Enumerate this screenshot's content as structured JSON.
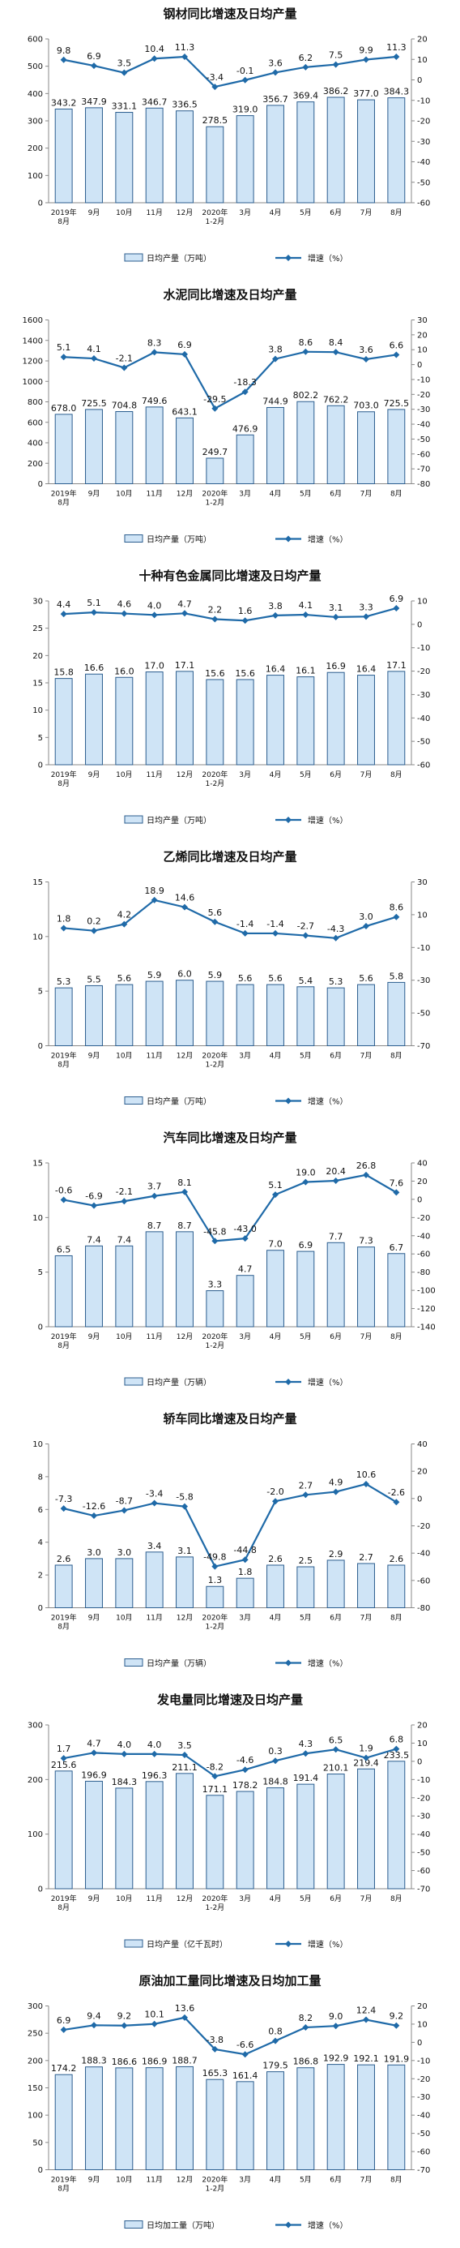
{
  "x_categories": [
    "2019年\n8月",
    "9月",
    "10月",
    "11月",
    "12月",
    "2020年\n1-2月",
    "3月",
    "4月",
    "5月",
    "6月",
    "7月",
    "8月"
  ],
  "colors": {
    "bar_fill": "#cfe4f6",
    "bar_stroke": "#2b5d8e",
    "line": "#1f6aa8",
    "axis": "#888888",
    "text": "#111111"
  },
  "chart_data": [
    {
      "type": "bar+line",
      "title": "钢材同比增速及日均产量",
      "legend": {
        "bar": "日均产量（万吨）",
        "line": "增速（%）",
        "placement": "bottom"
      },
      "bar_values": [
        343.2,
        347.9,
        331.1,
        346.7,
        336.5,
        278.5,
        319.0,
        356.7,
        369.4,
        386.2,
        377.0,
        384.3
      ],
      "line_values": [
        9.8,
        6.9,
        3.5,
        10.4,
        11.3,
        -3.4,
        -0.1,
        3.6,
        6.2,
        7.5,
        9.9,
        11.3
      ],
      "left_ticks": [
        0,
        100,
        200,
        300,
        400,
        500,
        600
      ],
      "right_ticks": [
        -60,
        -50,
        -40,
        -30,
        -20,
        -10,
        0,
        10,
        20
      ]
    },
    {
      "type": "bar+line",
      "title": "水泥同比增速及日均产量",
      "legend": {
        "bar": "日均产量（万吨）",
        "line": "增速（%）",
        "placement": "bottom"
      },
      "bar_values": [
        678.0,
        725.5,
        704.8,
        749.6,
        643.1,
        249.7,
        476.9,
        744.9,
        802.2,
        762.2,
        703.0,
        725.5
      ],
      "line_values": [
        5.1,
        4.1,
        -2.1,
        8.3,
        6.9,
        -29.5,
        -18.3,
        3.8,
        8.6,
        8.4,
        3.6,
        6.6
      ],
      "left_ticks": [
        0,
        200,
        400,
        600,
        800,
        1000,
        1200,
        1400,
        1600
      ],
      "right_ticks": [
        -80,
        -70,
        -60,
        -50,
        -40,
        -30,
        -20,
        -10,
        0,
        10,
        20,
        30
      ]
    },
    {
      "type": "bar+line",
      "title": "十种有色金属同比增速及日均产量",
      "legend": {
        "bar": "日均产量（万吨）",
        "line": "增速（%）",
        "placement": "bottom"
      },
      "bar_values": [
        15.8,
        16.6,
        16.0,
        17.0,
        17.1,
        15.6,
        15.6,
        16.4,
        16.1,
        16.9,
        16.4,
        17.1
      ],
      "line_values": [
        4.4,
        5.1,
        4.6,
        4.0,
        4.7,
        2.2,
        1.6,
        3.8,
        4.1,
        3.1,
        3.3,
        6.9
      ],
      "left_ticks": [
        0,
        5,
        10,
        15,
        20,
        25,
        30
      ],
      "right_ticks": [
        -60,
        -50,
        -40,
        -30,
        -20,
        -10,
        0,
        10
      ]
    },
    {
      "type": "bar+line",
      "title": "乙烯同比增速及日均产量",
      "legend": {
        "bar": "日均产量（万吨）",
        "line": "增速（%）",
        "placement": "bottom"
      },
      "bar_values": [
        5.3,
        5.5,
        5.6,
        5.9,
        6.0,
        5.9,
        5.6,
        5.6,
        5.4,
        5.3,
        5.6,
        5.8
      ],
      "line_values": [
        1.8,
        0.2,
        4.2,
        18.9,
        14.6,
        5.6,
        -1.4,
        -1.4,
        -2.7,
        -4.3,
        3.0,
        8.6
      ],
      "left_ticks": [
        0,
        5,
        10,
        15
      ],
      "right_ticks": [
        -70,
        -50,
        -30,
        -10,
        10,
        30
      ]
    },
    {
      "type": "bar+line",
      "title": "汽车同比增速及日均产量",
      "legend": {
        "bar": "日均产量（万辆）",
        "line": "增速（%）",
        "placement": "bottom"
      },
      "bar_values": [
        6.5,
        7.4,
        7.4,
        8.7,
        8.7,
        3.3,
        4.7,
        7.0,
        6.9,
        7.7,
        7.3,
        6.7
      ],
      "line_values": [
        -0.6,
        -6.9,
        -2.1,
        3.7,
        8.1,
        -45.8,
        -43.0,
        5.1,
        19.0,
        20.4,
        26.8,
        7.6
      ],
      "left_ticks": [
        0,
        5,
        10,
        15
      ],
      "right_ticks": [
        -140,
        -120,
        -100,
        -80,
        -60,
        -40,
        -20,
        0,
        20,
        40
      ]
    },
    {
      "type": "bar+line",
      "title": "轿车同比增速及日均产量",
      "legend": {
        "bar": "日均产量（万辆）",
        "line": "增速（%）",
        "placement": "bottom"
      },
      "bar_values": [
        2.6,
        3.0,
        3.0,
        3.4,
        3.1,
        1.3,
        1.8,
        2.6,
        2.5,
        2.9,
        2.7,
        2.6
      ],
      "line_values": [
        -7.3,
        -12.6,
        -8.7,
        -3.4,
        -5.8,
        -49.8,
        -44.8,
        -2.0,
        2.7,
        4.9,
        10.6,
        -2.6
      ],
      "left_ticks": [
        0,
        2,
        4,
        6,
        8,
        10
      ],
      "right_ticks": [
        -80,
        -60,
        -40,
        -20,
        0,
        20,
        40
      ]
    },
    {
      "type": "bar+line",
      "title": "发电量同比增速及日均产量",
      "legend": {
        "bar": "日均产量（亿千瓦时）",
        "line": "增速（%）",
        "placement": "bottom"
      },
      "bar_values": [
        215.6,
        196.9,
        184.3,
        196.3,
        211.1,
        171.1,
        178.2,
        184.8,
        191.4,
        210.1,
        219.4,
        233.5
      ],
      "line_values": [
        1.7,
        4.7,
        4.0,
        4.0,
        3.5,
        -8.2,
        -4.6,
        0.3,
        4.3,
        6.5,
        1.9,
        6.8
      ],
      "left_ticks": [
        0,
        100,
        200,
        300
      ],
      "right_ticks": [
        -70,
        -60,
        -50,
        -40,
        -30,
        -20,
        -10,
        0,
        10,
        20
      ]
    },
    {
      "type": "bar+line",
      "title": "原油加工量同比增速及日均加工量",
      "legend": {
        "bar": "日均加工量（万吨）",
        "line": "增速（%）",
        "placement": "bottom"
      },
      "bar_values": [
        174.2,
        188.3,
        186.6,
        186.9,
        188.7,
        165.3,
        161.4,
        179.5,
        186.8,
        192.9,
        192.1,
        191.9
      ],
      "line_values": [
        6.9,
        9.4,
        9.2,
        10.1,
        13.6,
        -3.8,
        -6.6,
        0.8,
        8.2,
        9.0,
        12.4,
        9.2
      ],
      "left_ticks": [
        0,
        50,
        100,
        150,
        200,
        250,
        300
      ],
      "right_ticks": [
        -70,
        -60,
        -50,
        -40,
        -30,
        -20,
        -10,
        0,
        10,
        20
      ]
    }
  ]
}
